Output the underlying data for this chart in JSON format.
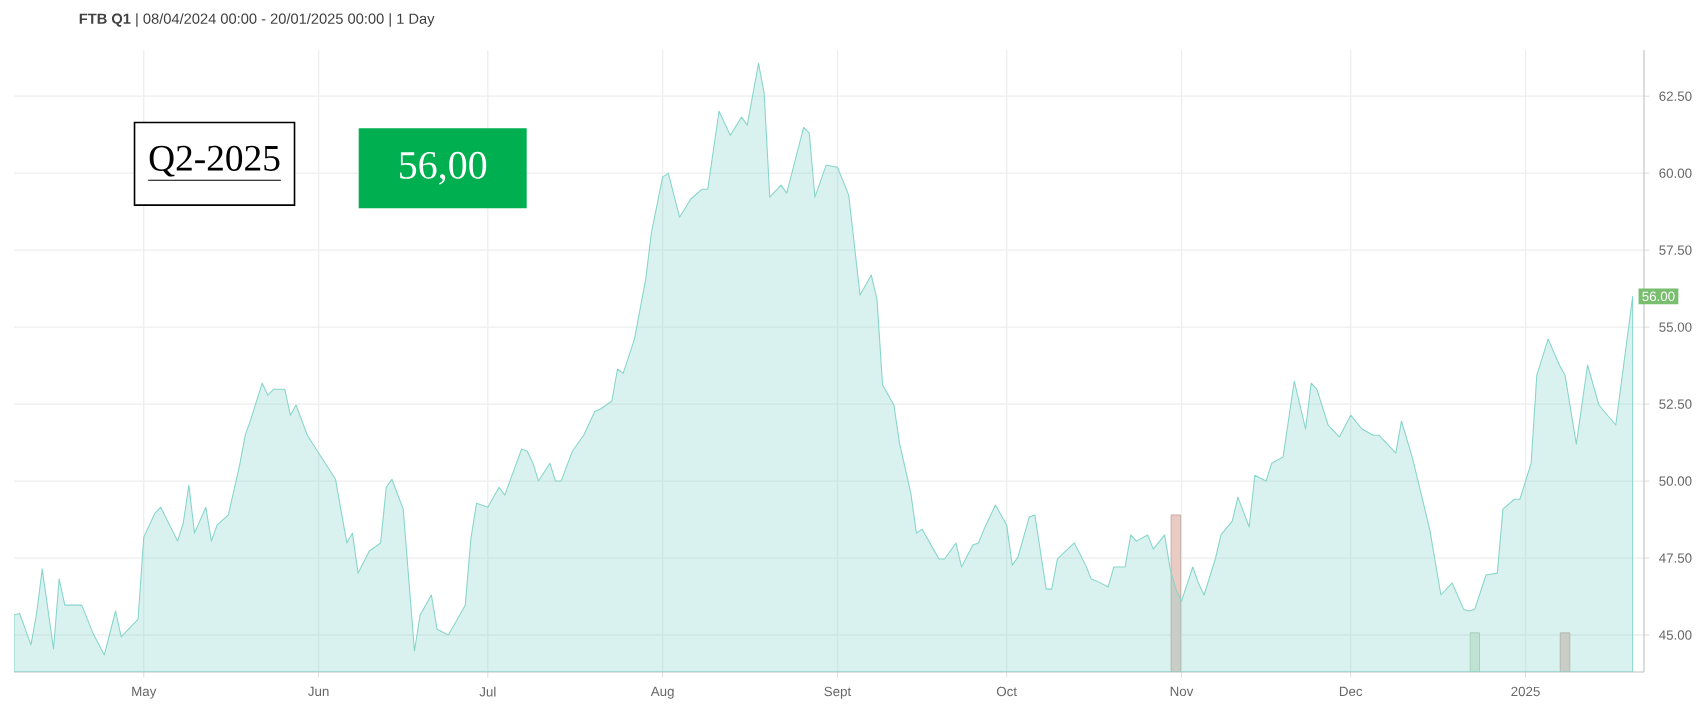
{
  "chart_data": {
    "type": "area",
    "title": "**FTB Q1** | 08/04/2024 00:00 - 20/01/2025 00:00 | 1 Day",
    "xlim": [
      "2024-04-08",
      "2025-01-22"
    ],
    "xticks": [
      {
        "value": "2024-05-01",
        "label": "May"
      },
      {
        "value": "2024-06-01",
        "label": "Jun"
      },
      {
        "value": "2024-07-01",
        "label": "Jul"
      },
      {
        "value": "2024-08-01",
        "label": "Aug"
      },
      {
        "value": "2024-09-01",
        "label": "Sept"
      },
      {
        "value": "2024-10-01",
        "label": "Oct"
      },
      {
        "value": "2024-11-01",
        "label": "Nov"
      },
      {
        "value": "2024-12-01",
        "label": "Dec"
      },
      {
        "value": "2025-01-01",
        "label": "2025"
      }
    ],
    "ylim": [
      43.8,
      64
    ],
    "yticks": [
      {
        "value": 45,
        "label": "45.00"
      },
      {
        "value": 47.5,
        "label": "47.50"
      },
      {
        "value": 50,
        "label": "50.00"
      },
      {
        "value": 52.5,
        "label": "52.50"
      },
      {
        "value": 55,
        "label": "55.00"
      },
      {
        "value": 57.5,
        "label": "57.50"
      },
      {
        "value": 60,
        "label": "60.00"
      },
      {
        "value": 62.5,
        "label": "62.50"
      }
    ],
    "grid": true,
    "annotations": [
      "Q2-2025",
      "56,00",
      {
        "text": "56.00",
        "x": "2025-01-20",
        "y": 56
      }
    ],
    "series": [
      {
        "color": "#86d5cb",
        "x": [
          "2024-04-08",
          "2024-04-09",
          "2024-04-11",
          "2024-04-12",
          "2024-04-13",
          "2024-04-15",
          "2024-04-16",
          "2024-04-17",
          "2024-04-20",
          "2024-04-22",
          "2024-04-24",
          "2024-04-26",
          "2024-04-27",
          "2024-04-30",
          "2024-05-01",
          "2024-05-03",
          "2024-05-04",
          "2024-05-07",
          "2024-05-08",
          "2024-05-09",
          "2024-05-10",
          "2024-05-12",
          "2024-05-13",
          "2024-05-14",
          "2024-05-16",
          "2024-05-18",
          "2024-05-19",
          "2024-05-20",
          "2024-05-22",
          "2024-05-23",
          "2024-05-24",
          "2024-05-26",
          "2024-05-27",
          "2024-05-28",
          "2024-05-30",
          "2024-06-04",
          "2024-06-06",
          "2024-06-07",
          "2024-06-08",
          "2024-06-10",
          "2024-06-12",
          "2024-06-13",
          "2024-06-14",
          "2024-06-16",
          "2024-06-18",
          "2024-06-19",
          "2024-06-21",
          "2024-06-22",
          "2024-06-24",
          "2024-06-25",
          "2024-06-27",
          "2024-06-28",
          "2024-06-29",
          "2024-07-01",
          "2024-07-03",
          "2024-07-04",
          "2024-07-07",
          "2024-07-08",
          "2024-07-09",
          "2024-07-10",
          "2024-07-12",
          "2024-07-13",
          "2024-07-14",
          "2024-07-16",
          "2024-07-18",
          "2024-07-20",
          "2024-07-21",
          "2024-07-23",
          "2024-07-24",
          "2024-07-25",
          "2024-07-27",
          "2024-07-29",
          "2024-07-30",
          "2024-08-01",
          "2024-08-02",
          "2024-08-04",
          "2024-08-06",
          "2024-08-08",
          "2024-08-09",
          "2024-08-11",
          "2024-08-13",
          "2024-08-15",
          "2024-08-16",
          "2024-08-18",
          "2024-08-19",
          "2024-08-20",
          "2024-08-22",
          "2024-08-23",
          "2024-08-26",
          "2024-08-27",
          "2024-08-28",
          "2024-08-30",
          "2024-09-01",
          "2024-09-03",
          "2024-09-05",
          "2024-09-07",
          "2024-09-08",
          "2024-09-09",
          "2024-09-11",
          "2024-09-12",
          "2024-09-14",
          "2024-09-15",
          "2024-09-16",
          "2024-09-18",
          "2024-09-19",
          "2024-09-20",
          "2024-09-22",
          "2024-09-23",
          "2024-09-25",
          "2024-09-26",
          "2024-09-27",
          "2024-09-29",
          "2024-10-01",
          "2024-10-02",
          "2024-10-03",
          "2024-10-05",
          "2024-10-06",
          "2024-10-08",
          "2024-10-09",
          "2024-10-10",
          "2024-10-13",
          "2024-10-15",
          "2024-10-16",
          "2024-10-17",
          "2024-10-19",
          "2024-10-20",
          "2024-10-22",
          "2024-10-23",
          "2024-10-24",
          "2024-10-26",
          "2024-10-27",
          "2024-10-29",
          "2024-10-30",
          "2024-10-31",
          "2024-11-01",
          "2024-11-03",
          "2024-11-04",
          "2024-11-05",
          "2024-11-07",
          "2024-11-08",
          "2024-11-10",
          "2024-11-11",
          "2024-11-13",
          "2024-11-14",
          "2024-11-16",
          "2024-11-17",
          "2024-11-19",
          "2024-11-21",
          "2024-11-23",
          "2024-11-24",
          "2024-11-25",
          "2024-11-27",
          "2024-11-29",
          "2024-12-01",
          "2024-12-03",
          "2024-12-05",
          "2024-12-06",
          "2024-12-09",
          "2024-12-10",
          "2024-12-12",
          "2024-12-15",
          "2024-12-17",
          "2024-12-19",
          "2024-12-21",
          "2024-12-22",
          "2024-12-23",
          "2024-12-25",
          "2024-12-27",
          "2024-12-28",
          "2024-12-30",
          "2024-12-31",
          "2025-01-02",
          "2025-01-03",
          "2025-01-05",
          "2025-01-07",
          "2025-01-08",
          "2025-01-10",
          "2025-01-12",
          "2025-01-14",
          "2025-01-17",
          "2025-01-20"
        ],
        "values": [
          45.65,
          45.7,
          44.68,
          45.7,
          47.14,
          44.55,
          46.82,
          45.97,
          45.97,
          45.06,
          44.35,
          45.78,
          44.94,
          45.52,
          48.18,
          48.96,
          49.15,
          48.05,
          48.63,
          49.87,
          48.31,
          49.15,
          48.05,
          48.57,
          48.9,
          50.52,
          51.49,
          52.01,
          53.18,
          52.79,
          52.98,
          52.98,
          52.14,
          52.47,
          51.49,
          50.06,
          47.99,
          48.31,
          47.01,
          47.73,
          47.99,
          49.8,
          50.06,
          49.09,
          44.48,
          45.65,
          46.3,
          45.19,
          45.0,
          45.32,
          45.97,
          48.12,
          49.28,
          49.15,
          49.8,
          49.54,
          51.04,
          50.97,
          50.58,
          50.0,
          50.58,
          50.0,
          50.0,
          50.97,
          51.49,
          52.27,
          52.34,
          52.6,
          53.64,
          53.5,
          54.61,
          56.56,
          58.05,
          59.87,
          60.0,
          58.57,
          59.16,
          59.48,
          59.48,
          62.01,
          61.23,
          61.82,
          61.56,
          63.57,
          62.6,
          59.22,
          59.61,
          59.35,
          61.49,
          61.3,
          59.22,
          60.26,
          60.19,
          59.28,
          56.04,
          56.69,
          55.91,
          53.12,
          52.47,
          51.23,
          49.61,
          48.31,
          48.44,
          47.79,
          47.47,
          47.47,
          47.99,
          47.21,
          47.92,
          47.99,
          48.44,
          49.22,
          48.57,
          47.27,
          47.53,
          48.83,
          48.9,
          46.49,
          46.49,
          47.47,
          47.99,
          47.27,
          46.82,
          46.75,
          46.56,
          47.21,
          47.21,
          48.25,
          48.05,
          48.25,
          47.79,
          48.25,
          47.14,
          46.49,
          46.1,
          47.21,
          46.69,
          46.3,
          47.47,
          48.25,
          48.7,
          49.48,
          48.51,
          50.19,
          50.0,
          50.58,
          50.78,
          53.25,
          51.69,
          53.18,
          52.98,
          51.82,
          51.43,
          52.14,
          51.69,
          51.49,
          51.49,
          50.91,
          51.95,
          50.71,
          48.44,
          46.3,
          46.69,
          45.84,
          45.78,
          45.84,
          46.95,
          47.01,
          49.09,
          49.41,
          49.41,
          50.58,
          53.44,
          54.61,
          53.77,
          53.44,
          51.2,
          53.77,
          52.47,
          51.82,
          56.0
        ]
      },
      {
        "type": "bar",
        "x": [
          "2024-10-31",
          "2024-12-23",
          "2025-01-08"
        ],
        "values": [
          48.9,
          45.07,
          45.07
        ],
        "colors": [
          "#e9cbc3",
          "#d9ead6",
          "#e9cbc3"
        ]
      }
    ]
  }
}
